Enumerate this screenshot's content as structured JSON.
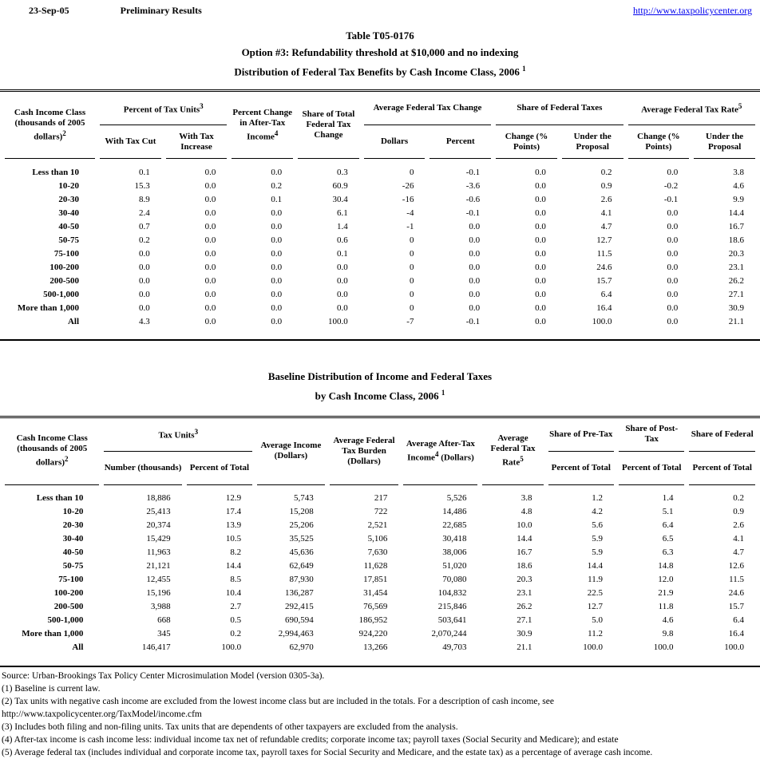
{
  "page_header": {
    "date": "23-Sep-05",
    "status": "Preliminary Results",
    "link": "http://www.taxpolicycenter.org"
  },
  "table1": {
    "title_line1": "Table T05-0176",
    "title_line2": "Option #3: Refundability threshold at $10,000 and no indexing",
    "title_line3": "Distribution of Federal Tax Benefits by Cash Income Class, 2006",
    "title_sup": "1",
    "header": {
      "income_class": {
        "text": "Cash Income Class (thousands of 2005 dollars)",
        "sup": "2"
      },
      "pct_tax_units": {
        "text": "Percent of Tax Units",
        "sup": "3"
      },
      "with_tax_cut": "With Tax Cut",
      "with_tax_increase": "With Tax Increase",
      "pct_change_ati": {
        "text": "Percent Change in After-Tax Income",
        "sup": "4"
      },
      "share_total_change": "Share of Total Federal Tax Change",
      "avg_fed_tax_change": "Average Federal Tax Change",
      "dollars": "Dollars",
      "percent": "Percent",
      "share_fed_taxes": "Share of Federal Taxes",
      "change_points_a": "Change (% Points)",
      "under_proposal_a": "Under the Proposal",
      "avg_fed_tax_rate": {
        "text": "Average Federal Tax Rate",
        "sup": "5"
      },
      "change_points_b": "Change (% Points)",
      "under_proposal_b": "Under the Proposal"
    },
    "rows": [
      [
        "Less than 10",
        "0.1",
        "0.0",
        "0.0",
        "0.3",
        "0",
        "-0.1",
        "0.0",
        "0.2",
        "0.0",
        "3.8"
      ],
      [
        "10-20",
        "15.3",
        "0.0",
        "0.2",
        "60.9",
        "-26",
        "-3.6",
        "0.0",
        "0.9",
        "-0.2",
        "4.6"
      ],
      [
        "20-30",
        "8.9",
        "0.0",
        "0.1",
        "30.4",
        "-16",
        "-0.6",
        "0.0",
        "2.6",
        "-0.1",
        "9.9"
      ],
      [
        "30-40",
        "2.4",
        "0.0",
        "0.0",
        "6.1",
        "-4",
        "-0.1",
        "0.0",
        "4.1",
        "0.0",
        "14.4"
      ],
      [
        "40-50",
        "0.7",
        "0.0",
        "0.0",
        "1.4",
        "-1",
        "0.0",
        "0.0",
        "4.7",
        "0.0",
        "16.7"
      ],
      [
        "50-75",
        "0.2",
        "0.0",
        "0.0",
        "0.6",
        "0",
        "0.0",
        "0.0",
        "12.7",
        "0.0",
        "18.6"
      ],
      [
        "75-100",
        "0.0",
        "0.0",
        "0.0",
        "0.1",
        "0",
        "0.0",
        "0.0",
        "11.5",
        "0.0",
        "20.3"
      ],
      [
        "100-200",
        "0.0",
        "0.0",
        "0.0",
        "0.0",
        "0",
        "0.0",
        "0.0",
        "24.6",
        "0.0",
        "23.1"
      ],
      [
        "200-500",
        "0.0",
        "0.0",
        "0.0",
        "0.0",
        "0",
        "0.0",
        "0.0",
        "15.7",
        "0.0",
        "26.2"
      ],
      [
        "500-1,000",
        "0.0",
        "0.0",
        "0.0",
        "0.0",
        "0",
        "0.0",
        "0.0",
        "6.4",
        "0.0",
        "27.1"
      ],
      [
        "More than 1,000",
        "0.0",
        "0.0",
        "0.0",
        "0.0",
        "0",
        "0.0",
        "0.0",
        "16.4",
        "0.0",
        "30.9"
      ],
      [
        "All",
        "4.3",
        "0.0",
        "0.0",
        "100.0",
        "-7",
        "-0.1",
        "0.0",
        "100.0",
        "0.0",
        "21.1"
      ]
    ]
  },
  "table2": {
    "title_line1": "Baseline Distribution of Income and Federal Taxes",
    "title_line2": "by Cash Income Class, 2006",
    "title_sup": "1",
    "header": {
      "income_class": {
        "text": "Cash Income Class (thousands of 2005 dollars)",
        "sup": "2"
      },
      "tax_units": {
        "text": "Tax Units",
        "sup": "3"
      },
      "number_thousands": "Number (thousands)",
      "percent_of_total": "Percent of Total",
      "avg_income": "Average Income (Dollars)",
      "avg_burden": "Average Federal Tax Burden (Dollars)",
      "avg_after_tax_income": {
        "text": "Average After-Tax Income",
        "sup": "4",
        "suffix": "(Dollars)"
      },
      "avg_rate": {
        "text": "Average Federal Tax Rate",
        "sup": "5"
      },
      "share_pre_tax": "Share of Pre-Tax",
      "share_post_tax": "Share of Post-Tax",
      "share_federal": "Share of Federal",
      "pct_total_sub1": "Percent of Total",
      "pct_total_sub2": "Percent of Total",
      "pct_total_sub3": "Percent of Total"
    },
    "rows": [
      [
        "Less than 10",
        "18,886",
        "12.9",
        "5,743",
        "217",
        "5,526",
        "3.8",
        "1.2",
        "1.4",
        "0.2"
      ],
      [
        "10-20",
        "25,413",
        "17.4",
        "15,208",
        "722",
        "14,486",
        "4.8",
        "4.2",
        "5.1",
        "0.9"
      ],
      [
        "20-30",
        "20,374",
        "13.9",
        "25,206",
        "2,521",
        "22,685",
        "10.0",
        "5.6",
        "6.4",
        "2.6"
      ],
      [
        "30-40",
        "15,429",
        "10.5",
        "35,525",
        "5,106",
        "30,418",
        "14.4",
        "5.9",
        "6.5",
        "4.1"
      ],
      [
        "40-50",
        "11,963",
        "8.2",
        "45,636",
        "7,630",
        "38,006",
        "16.7",
        "5.9",
        "6.3",
        "4.7"
      ],
      [
        "50-75",
        "21,121",
        "14.4",
        "62,649",
        "11,628",
        "51,020",
        "18.6",
        "14.4",
        "14.8",
        "12.6"
      ],
      [
        "75-100",
        "12,455",
        "8.5",
        "87,930",
        "17,851",
        "70,080",
        "20.3",
        "11.9",
        "12.0",
        "11.5"
      ],
      [
        "100-200",
        "15,196",
        "10.4",
        "136,287",
        "31,454",
        "104,832",
        "23.1",
        "22.5",
        "21.9",
        "24.6"
      ],
      [
        "200-500",
        "3,988",
        "2.7",
        "292,415",
        "76,569",
        "215,846",
        "26.2",
        "12.7",
        "11.8",
        "15.7"
      ],
      [
        "500-1,000",
        "668",
        "0.5",
        "690,594",
        "186,952",
        "503,641",
        "27.1",
        "5.0",
        "4.6",
        "6.4"
      ],
      [
        "More than 1,000",
        "345",
        "0.2",
        "2,994,463",
        "924,220",
        "2,070,244",
        "30.9",
        "11.2",
        "9.8",
        "16.4"
      ],
      [
        "All",
        "146,417",
        "100.0",
        "62,970",
        "13,266",
        "49,703",
        "21.1",
        "100.0",
        "100.0",
        "100.0"
      ]
    ]
  },
  "footnotes": [
    "Source: Urban-Brookings Tax Policy Center Microsimulation Model (version 0305-3a).",
    "(1) Baseline is current law.",
    "(2) Tax units with negative cash income are excluded from the lowest income class but are included in the totals. For a description of cash income, see",
    "http://www.taxpolicycenter.org/TaxModel/income.cfm",
    "(3) Includes both filing and non-filing units.  Tax units that are dependents of other taxpayers are excluded from the analysis.",
    "(4) After-tax income is cash income less: individual income tax net of refundable credits; corporate income tax; payroll taxes (Social Security and Medicare); and estate",
    "(5) Average federal tax (includes individual and corporate income tax, payroll taxes for Social Security and Medicare, and the estate tax) as a percentage of average cash income."
  ]
}
